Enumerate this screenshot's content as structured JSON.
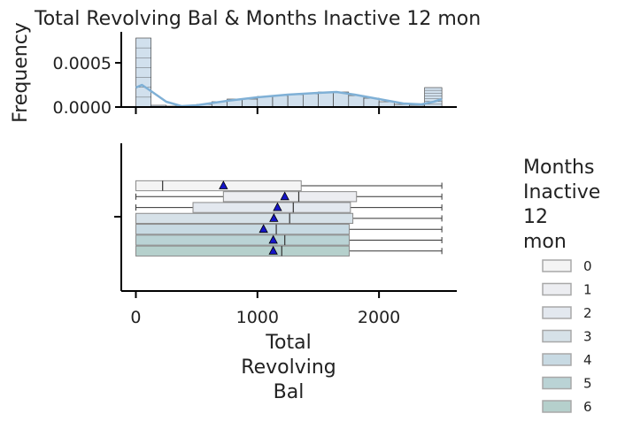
{
  "chart_data": {
    "type": "histogram+boxplot",
    "title": "Total Revolving Bal & Months Inactive 12 mon",
    "hist": {
      "ylabel": "Frequency",
      "yticks": [
        "0.0000",
        "0.0005"
      ],
      "ylim": [
        0,
        0.00085
      ],
      "bin_width": 125,
      "bins": [
        {
          "x0": 0,
          "x1": 125,
          "height": 0.00078
        },
        {
          "x0": 125,
          "x1": 250,
          "height": 2e-05
        },
        {
          "x0": 250,
          "x1": 375,
          "height": 1e-05
        },
        {
          "x0": 375,
          "x1": 500,
          "height": 1e-05
        },
        {
          "x0": 500,
          "x1": 625,
          "height": 3e-05
        },
        {
          "x0": 625,
          "x1": 750,
          "height": 6e-05
        },
        {
          "x0": 750,
          "x1": 875,
          "height": 9e-05
        },
        {
          "x0": 875,
          "x1": 1000,
          "height": 9e-05
        },
        {
          "x0": 1000,
          "x1": 1125,
          "height": 0.00012
        },
        {
          "x0": 1125,
          "x1": 1250,
          "height": 0.00013
        },
        {
          "x0": 1250,
          "x1": 1375,
          "height": 0.00014
        },
        {
          "x0": 1375,
          "x1": 1500,
          "height": 0.00015
        },
        {
          "x0": 1500,
          "x1": 1625,
          "height": 0.00017
        },
        {
          "x0": 1625,
          "x1": 1750,
          "height": 0.00017
        },
        {
          "x0": 1750,
          "x1": 1875,
          "height": 0.00013
        },
        {
          "x0": 1875,
          "x1": 2000,
          "height": 0.0001
        },
        {
          "x0": 2000,
          "x1": 2125,
          "height": 6e-05
        },
        {
          "x0": 2125,
          "x1": 2250,
          "height": 3e-05
        },
        {
          "x0": 2250,
          "x1": 2375,
          "height": 2e-05
        },
        {
          "x0": 2375,
          "x1": 2517,
          "height": 0.00022
        }
      ],
      "kde": [
        [
          0,
          0.00022
        ],
        [
          50,
          0.00025
        ],
        [
          125,
          0.00018
        ],
        [
          250,
          6e-05
        ],
        [
          375,
          1e-05
        ],
        [
          500,
          2e-05
        ],
        [
          750,
          7e-05
        ],
        [
          1000,
          0.00011
        ],
        [
          1250,
          0.00014
        ],
        [
          1500,
          0.00016
        ],
        [
          1650,
          0.00017
        ],
        [
          1800,
          0.00014
        ],
        [
          2000,
          9e-05
        ],
        [
          2200,
          4e-05
        ],
        [
          2350,
          3e-05
        ],
        [
          2450,
          6e-05
        ],
        [
          2517,
          9e-05
        ]
      ]
    },
    "box": {
      "xlabel": "Total Revolving Bal",
      "xlabel_lines": [
        "Total",
        "Revolving",
        "Bal"
      ],
      "xticks": [
        "0",
        "1000",
        "2000"
      ],
      "xtick_values": [
        0,
        1000,
        2000
      ],
      "xlim": [
        -120,
        2640
      ],
      "series": [
        {
          "name": "0",
          "whisker_low": 0,
          "q1": 0,
          "median": 220,
          "q3": 1360,
          "whisker_high": 2517,
          "mean": 720,
          "color": "#f4f4f4"
        },
        {
          "name": "1",
          "whisker_low": 0,
          "q1": 720,
          "median": 1340,
          "q3": 1815,
          "whisker_high": 2517,
          "mean": 1225,
          "color": "#ecedf1"
        },
        {
          "name": "2",
          "whisker_low": 0,
          "q1": 470,
          "median": 1295,
          "q3": 1765,
          "whisker_high": 2517,
          "mean": 1165,
          "color": "#e3e8ef"
        },
        {
          "name": "3",
          "whisker_low": 0,
          "q1": 0,
          "median": 1265,
          "q3": 1785,
          "whisker_high": 2517,
          "mean": 1135,
          "color": "#d6e1e8"
        },
        {
          "name": "4",
          "whisker_low": 0,
          "q1": 0,
          "median": 1155,
          "q3": 1755,
          "whisker_high": 2517,
          "mean": 1050,
          "color": "#c8dae3"
        },
        {
          "name": "5",
          "whisker_low": 0,
          "q1": 0,
          "median": 1225,
          "q3": 1755,
          "whisker_high": 2517,
          "mean": 1130,
          "color": "#bad3d5"
        },
        {
          "name": "6",
          "whisker_low": 0,
          "q1": 0,
          "median": 1200,
          "q3": 1755,
          "whisker_high": 2517,
          "mean": 1130,
          "color": "#b5d0cc"
        }
      ]
    },
    "legend": {
      "title": "Months Inactive 12 mon",
      "title_lines": [
        "Months",
        "Inactive",
        "12",
        "mon"
      ],
      "placement": "right",
      "labels": [
        "0",
        "1",
        "2",
        "3",
        "4",
        "5",
        "6"
      ],
      "colors": [
        "#f4f4f4",
        "#ecedf1",
        "#e3e8ef",
        "#d6e1e8",
        "#c8dae3",
        "#bad3d5",
        "#b5d0cc"
      ]
    },
    "colors": {
      "hist_fill": "#c9dbea",
      "hist_edge": "#333333",
      "kde_line": "#7fb0d6",
      "mean_marker": "#1515c8",
      "axis": "#000000"
    },
    "grid": false
  }
}
